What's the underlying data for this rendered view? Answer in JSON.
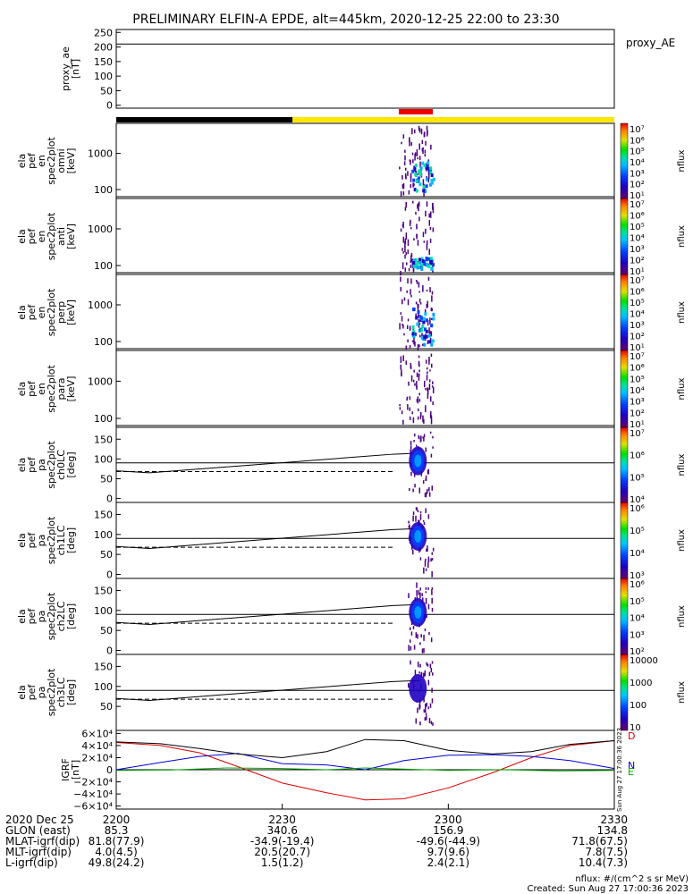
{
  "title": "PRELIMINARY ELFIN-A EPDE, alt=445km, 2020-12-25 22:00 to 23:30",
  "colors": {
    "black_bar": "#000000",
    "yellow_bar": "#ffe600",
    "red_bar": "#ee0000",
    "igrf_x": "#dd0000",
    "igrf_y": "#00aa00",
    "igrf_z": "#0000dd",
    "igrf_total": "#000000"
  },
  "chart_data": [
    {
      "type": "line",
      "panel": "proxy_ae",
      "ylabel": [
        "proxy_ae",
        "[nT]"
      ],
      "ylim": [
        -10,
        260
      ],
      "yticks": [
        "250",
        "200",
        "150",
        "100",
        "50",
        "0"
      ],
      "xlim": [
        0,
        90
      ],
      "series": [
        {
          "name": "proxy_AE",
          "x": [
            0,
            90
          ],
          "values": [
            210,
            210
          ]
        }
      ]
    },
    {
      "type": "heatmap",
      "panel": "spec_omni",
      "ylabel": [
        "ela",
        "pef",
        "en",
        "spec2plot",
        "omni",
        "[keV]"
      ],
      "yscale": "log",
      "yticks": [
        "1000",
        "100"
      ],
      "colorbar": {
        "label": "nflux",
        "ticks": [
          "10⁷",
          "10⁶",
          "10⁵",
          "10⁴",
          "10³",
          "10²",
          "10¹"
        ]
      },
      "hline": 60
    },
    {
      "type": "heatmap",
      "panel": "spec_anti",
      "ylabel": [
        "ela",
        "pef",
        "en",
        "spec2plot",
        "anti",
        "[keV]"
      ],
      "yscale": "log",
      "yticks": [
        "1000",
        "100"
      ],
      "colorbar": {
        "label": "nflux",
        "ticks": [
          "10⁷",
          "10⁶",
          "10⁵",
          "10⁴",
          "10³",
          "10²",
          "10¹"
        ]
      },
      "hline": 60
    },
    {
      "type": "heatmap",
      "panel": "spec_perp",
      "ylabel": [
        "ela",
        "pef",
        "en",
        "spec2plot",
        "perp",
        "[keV]"
      ],
      "yscale": "log",
      "yticks": [
        "1000",
        "100"
      ],
      "colorbar": {
        "label": "nflux",
        "ticks": [
          "10⁷",
          "10⁶",
          "10⁵",
          "10⁴",
          "10³",
          "10²",
          "10¹"
        ]
      },
      "hline": 60
    },
    {
      "type": "heatmap",
      "panel": "spec_para",
      "ylabel": [
        "ela",
        "pef",
        "en",
        "spec2plot",
        "para",
        "[keV]"
      ],
      "yscale": "log",
      "yticks": [
        "1000",
        "100"
      ],
      "colorbar": {
        "label": "nflux",
        "ticks": [
          "10⁷",
          "10⁶",
          "10⁵",
          "10⁴",
          "10³",
          "10²",
          "10¹"
        ]
      },
      "hline": 60
    },
    {
      "type": "heatmap",
      "panel": "pa_ch0",
      "ylabel": [
        "ela",
        "pef",
        "pa",
        "spec2plot",
        "ch0LC",
        "[deg]"
      ],
      "yticks": [
        "150",
        "100",
        "50",
        "0"
      ],
      "ylim": [
        -10,
        180
      ],
      "colorbar": {
        "label": "nflux",
        "ticks": [
          "10⁷",
          "10⁶",
          "10⁵",
          "10⁴"
        ]
      },
      "hline": 90
    },
    {
      "type": "heatmap",
      "panel": "pa_ch1",
      "ylabel": [
        "ela",
        "pef",
        "pa",
        "spec2plot",
        "ch1LC",
        "[deg]"
      ],
      "yticks": [
        "150",
        "100",
        "50",
        "0"
      ],
      "ylim": [
        -10,
        180
      ],
      "colorbar": {
        "label": "nflux",
        "ticks": [
          "10⁶",
          "10⁵",
          "10⁴",
          "10³"
        ]
      },
      "hline": 90
    },
    {
      "type": "heatmap",
      "panel": "pa_ch2",
      "ylabel": [
        "ela",
        "pef",
        "pa",
        "spec2plot",
        "ch2LC",
        "[deg]"
      ],
      "yticks": [
        "150",
        "100",
        "50",
        "0"
      ],
      "ylim": [
        -10,
        180
      ],
      "colorbar": {
        "label": "nflux",
        "ticks": [
          "10⁶",
          "10⁵",
          "10⁴",
          "10³",
          "10²"
        ]
      },
      "hline": 90
    },
    {
      "type": "heatmap",
      "panel": "pa_ch3",
      "ylabel": [
        "ela",
        "pef",
        "pa",
        "spec2plot",
        "ch3LC",
        "[deg]"
      ],
      "yticks": [
        "150",
        "100",
        "50"
      ],
      "ylim": [
        -10,
        180
      ],
      "colorbar": {
        "label": "nflux",
        "ticks": [
          "10000",
          "1000",
          "100",
          "10"
        ]
      },
      "hline": 90
    },
    {
      "type": "line",
      "panel": "igrf",
      "ylabel": [
        "IGRF",
        "[nT]"
      ],
      "ylim": [
        -65000,
        65000
      ],
      "yticks": [
        "6×10⁴",
        "4×10⁴",
        "2×10⁴",
        "0",
        "−2×10⁴",
        "−4×10⁴",
        "−6×10⁴"
      ],
      "legend": [
        "D",
        "N",
        "E"
      ],
      "side_note": "Sun Aug 27 17:00:36 2023",
      "xlim": [
        0,
        90
      ],
      "series": [
        {
          "name": "D",
          "x": [
            0,
            8,
            15,
            22,
            30,
            38,
            45,
            52,
            60,
            68,
            75,
            82,
            90
          ],
          "values": [
            45000,
            40000,
            28000,
            5000,
            -22000,
            -38000,
            -50000,
            -48000,
            -30000,
            -5000,
            20000,
            40000,
            48000
          ]
        },
        {
          "name": "N",
          "x": [
            0,
            8,
            15,
            22,
            30,
            38,
            45,
            52,
            60,
            68,
            75,
            82,
            90
          ],
          "values": [
            0,
            12000,
            22000,
            27000,
            10000,
            8000,
            0,
            15000,
            24000,
            25000,
            22000,
            15000,
            2000
          ]
        },
        {
          "name": "E",
          "x": [
            0,
            10,
            20,
            30,
            38,
            45,
            52,
            60,
            70,
            80,
            90
          ],
          "values": [
            -1000,
            -500,
            3000,
            2000,
            0,
            3000,
            1000,
            -1000,
            0,
            -2000,
            -1000
          ]
        },
        {
          "name": "total",
          "x": [
            0,
            8,
            15,
            22,
            30,
            38,
            45,
            52,
            60,
            68,
            75,
            82,
            90
          ],
          "values": [
            46000,
            43000,
            35000,
            26000,
            20000,
            30000,
            50000,
            48000,
            32000,
            26000,
            30000,
            42000,
            48000
          ]
        }
      ]
    }
  ],
  "spec_axis_tick_labels": {
    "spec_omni": [
      "1000",
      "100"
    ]
  },
  "time_axis": {
    "x": [
      0,
      30,
      60,
      90
    ],
    "rows": [
      {
        "label": "2020 Dec 25",
        "values": [
          "2200",
          "2230",
          "2300",
          "2330"
        ]
      },
      {
        "label": "GLON (east)",
        "values": [
          "85.3",
          "340.6",
          "156.9",
          "134.8"
        ]
      },
      {
        "label": "MLAT-igrf(dip)",
        "values": [
          "81.8(77.9)",
          "-34.9(-19.4)",
          "-49.6(-44.9)",
          "71.8(67.5)"
        ]
      },
      {
        "label": "MLT-igrf(dip)",
        "values": [
          "4.0(4.5)",
          "20.5(20.7)",
          "9.7(9.6)",
          "7.8(7.5)"
        ]
      },
      {
        "label": "L-igrf(dip)",
        "values": [
          "49.8(24.2)",
          "1.5(1.2)",
          "2.4(2.1)",
          "10.4(7.3)"
        ]
      }
    ]
  },
  "footer": {
    "units": "nflux: #/(cm^2 s sr MeV)",
    "created": "Created: Sun Aug 27 17:00:36 2023"
  },
  "legend_proxy": "proxy_AE"
}
